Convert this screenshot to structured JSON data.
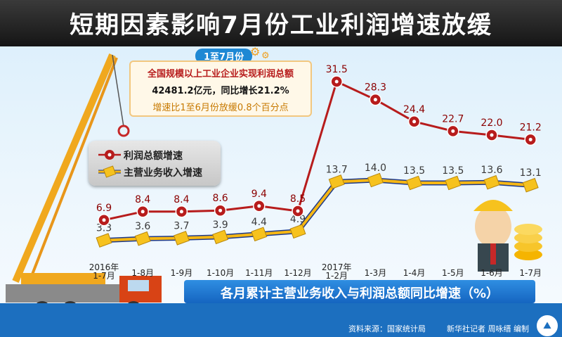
{
  "title": "短期因素影响7月份工业利润增速放缓",
  "info_box": {
    "badge": "1至7月份",
    "line1": "全国规模以上工业企业实现利润总额",
    "line2": "42481.2亿元，同比增长21.2%",
    "line3": "增速比1至6月份放缓0.8个百分点"
  },
  "legend": {
    "profit": "利润总额增速",
    "revenue": "主营业务收入增速"
  },
  "subtitle": "各月累计主营业务收入与利润总额同比增速（%）",
  "footer": {
    "source": "资料来源：国家统计局",
    "credit": "新华社记者 周咏缙 编制"
  },
  "colors": {
    "profit_line": "#b71c1c",
    "revenue_line": "#f6b714",
    "title_bar": "#222222",
    "subtitle_bar": "#1e78d0"
  },
  "chart_data": {
    "type": "line",
    "x": [
      [
        "2016年",
        "1-7月"
      ],
      [
        "1-8月"
      ],
      [
        "1-9月"
      ],
      [
        "1-10月"
      ],
      [
        "1-11月"
      ],
      [
        "1-12月"
      ],
      [
        "2017年",
        "1-2月"
      ],
      [
        "1-3月"
      ],
      [
        "1-4月"
      ],
      [
        "1-5月"
      ],
      [
        "1-6月"
      ],
      [
        "1-7月"
      ]
    ],
    "series": [
      {
        "name": "利润总额增速",
        "values": [
          6.9,
          8.4,
          8.4,
          8.6,
          9.4,
          8.5,
          31.5,
          28.3,
          24.4,
          22.7,
          22.0,
          21.2
        ]
      },
      {
        "name": "主营业务收入增速",
        "values": [
          3.3,
          3.6,
          3.7,
          3.9,
          4.4,
          4.9,
          13.7,
          14.0,
          13.5,
          13.5,
          13.6,
          13.1
        ]
      }
    ],
    "value_labels": [
      [
        "6.9",
        "8.4",
        "8.4",
        "8.6",
        "9.4",
        "8.5",
        "31.5",
        "28.3",
        "24.4",
        "22.7",
        "22.0",
        "21.2"
      ],
      [
        "3.3",
        "3.6",
        "3.7",
        "3.9",
        "4.4",
        "4.9",
        "13.7",
        "14.0",
        "13.5",
        "13.5",
        "13.6",
        "13.1"
      ]
    ],
    "ylabel": "%",
    "grid": false,
    "legend_position": "left"
  }
}
